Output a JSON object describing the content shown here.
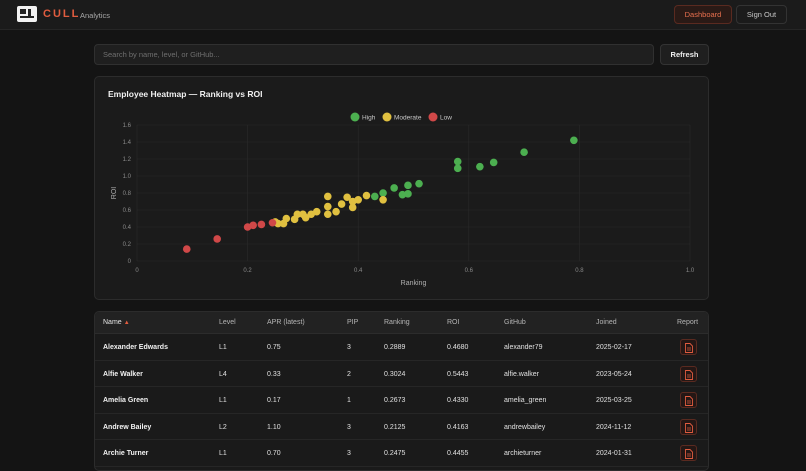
{
  "header": {
    "brand": "CULL",
    "brand_sub": "Analytics",
    "dashboard_label": "Dashboard",
    "signout_label": "Sign Out"
  },
  "search": {
    "placeholder": "Search by name, level, or GitHub...",
    "value": ""
  },
  "refresh_label": "Refresh",
  "colors": {
    "accent": "#e05c3f",
    "high": "#4caf50",
    "moderate": "#e0c040",
    "low": "#d04848"
  },
  "chart_data": {
    "type": "scatter",
    "title": "Employee Heatmap — Ranking vs ROI",
    "xlabel": "Ranking",
    "ylabel": "ROI",
    "xlim": [
      0,
      1.0
    ],
    "ylim": [
      0,
      1.6
    ],
    "x_ticks": [
      "0",
      "0.2",
      "0.4",
      "0.6",
      "0.8",
      "1.0"
    ],
    "y_ticks": [
      "0",
      "0.2",
      "0.4",
      "0.6",
      "0.8",
      "1.0",
      "1.2",
      "1.4",
      "1.6"
    ],
    "grid": true,
    "legend_position": "top-center",
    "series": [
      {
        "name": "High",
        "color": "#4caf50",
        "points": [
          [
            0.79,
            1.42
          ],
          [
            0.7,
            1.28
          ],
          [
            0.645,
            1.16
          ],
          [
            0.62,
            1.11
          ],
          [
            0.58,
            1.17
          ],
          [
            0.58,
            1.09
          ],
          [
            0.51,
            0.91
          ],
          [
            0.49,
            0.89
          ],
          [
            0.465,
            0.86
          ],
          [
            0.48,
            0.78
          ],
          [
            0.49,
            0.79
          ],
          [
            0.445,
            0.8
          ],
          [
            0.43,
            0.76
          ]
        ]
      },
      {
        "name": "Moderate",
        "color": "#e0c040",
        "points": [
          [
            0.445,
            0.72
          ],
          [
            0.415,
            0.77
          ],
          [
            0.4,
            0.72
          ],
          [
            0.39,
            0.7
          ],
          [
            0.39,
            0.63
          ],
          [
            0.38,
            0.75
          ],
          [
            0.37,
            0.67
          ],
          [
            0.36,
            0.58
          ],
          [
            0.345,
            0.76
          ],
          [
            0.345,
            0.64
          ],
          [
            0.345,
            0.55
          ],
          [
            0.325,
            0.58
          ],
          [
            0.315,
            0.55
          ],
          [
            0.305,
            0.51
          ],
          [
            0.3,
            0.55
          ],
          [
            0.29,
            0.55
          ],
          [
            0.285,
            0.49
          ],
          [
            0.27,
            0.5
          ],
          [
            0.265,
            0.44
          ],
          [
            0.255,
            0.44
          ],
          [
            0.25,
            0.46
          ]
        ]
      },
      {
        "name": "Low",
        "color": "#d04848",
        "points": [
          [
            0.245,
            0.45
          ],
          [
            0.225,
            0.43
          ],
          [
            0.21,
            0.42
          ],
          [
            0.2,
            0.4
          ],
          [
            0.145,
            0.26
          ],
          [
            0.09,
            0.14
          ]
        ]
      }
    ]
  },
  "table": {
    "columns": [
      "Name",
      "Level",
      "APR (latest)",
      "PIP",
      "Ranking",
      "ROI",
      "GitHub",
      "Joined",
      "Report"
    ],
    "sort_indicator": "▲",
    "rows": [
      {
        "name": "Alexander Edwards",
        "level": "L1",
        "apr": "0.75",
        "pip": "3",
        "ranking": "0.2889",
        "roi": "0.4680",
        "github": "alexander79",
        "joined": "2025-02-17"
      },
      {
        "name": "Alfie Walker",
        "level": "L4",
        "apr": "0.33",
        "pip": "2",
        "ranking": "0.3024",
        "roi": "0.5443",
        "github": "alfie.walker",
        "joined": "2023-05-24"
      },
      {
        "name": "Amelia Green",
        "level": "L1",
        "apr": "0.17",
        "pip": "1",
        "ranking": "0.2673",
        "roi": "0.4330",
        "github": "amelia_green",
        "joined": "2025-03-25"
      },
      {
        "name": "Andrew Bailey",
        "level": "L2",
        "apr": "1.10",
        "pip": "3",
        "ranking": "0.2125",
        "roi": "0.4163",
        "github": "andrewbailey",
        "joined": "2024-11-12"
      },
      {
        "name": "Archie Turner",
        "level": "L1",
        "apr": "0.70",
        "pip": "3",
        "ranking": "0.2475",
        "roi": "0.4455",
        "github": "archieturner",
        "joined": "2024-01-31"
      }
    ]
  }
}
